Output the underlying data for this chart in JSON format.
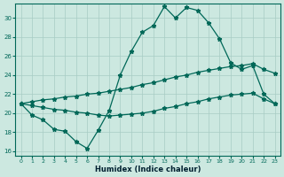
{
  "xlabel": "Humidex (Indice chaleur)",
  "xlim": [
    -0.5,
    23.5
  ],
  "ylim": [
    15.5,
    31.5
  ],
  "yticks": [
    16,
    18,
    20,
    22,
    24,
    26,
    28,
    30
  ],
  "xticks": [
    0,
    1,
    2,
    3,
    4,
    5,
    6,
    7,
    8,
    9,
    10,
    11,
    12,
    13,
    14,
    15,
    16,
    17,
    18,
    19,
    20,
    21,
    22,
    23
  ],
  "bg_color": "#cce8e0",
  "grid_color": "#a8ccc4",
  "line_color": "#006858",
  "line1_y": [
    21.0,
    19.8,
    19.3,
    18.3,
    18.1,
    17.0,
    16.3,
    18.2,
    20.3,
    24.0,
    26.5,
    28.5,
    29.2,
    31.2,
    30.0,
    31.1,
    30.8,
    29.5,
    27.8,
    25.3,
    24.6,
    25.0,
    22.0,
    21.0
  ],
  "line2_y": [
    21.0,
    21.2,
    21.4,
    21.5,
    21.7,
    21.8,
    22.0,
    22.1,
    22.3,
    22.5,
    22.7,
    23.0,
    23.2,
    23.5,
    23.8,
    24.0,
    24.3,
    24.5,
    24.7,
    24.9,
    25.0,
    25.2,
    24.6,
    24.2
  ],
  "line3_y": [
    21.0,
    20.8,
    20.6,
    20.4,
    20.3,
    20.1,
    20.0,
    19.8,
    19.7,
    19.8,
    19.9,
    20.0,
    20.2,
    20.5,
    20.7,
    21.0,
    21.2,
    21.5,
    21.7,
    21.9,
    22.0,
    22.1,
    21.5,
    21.0
  ]
}
